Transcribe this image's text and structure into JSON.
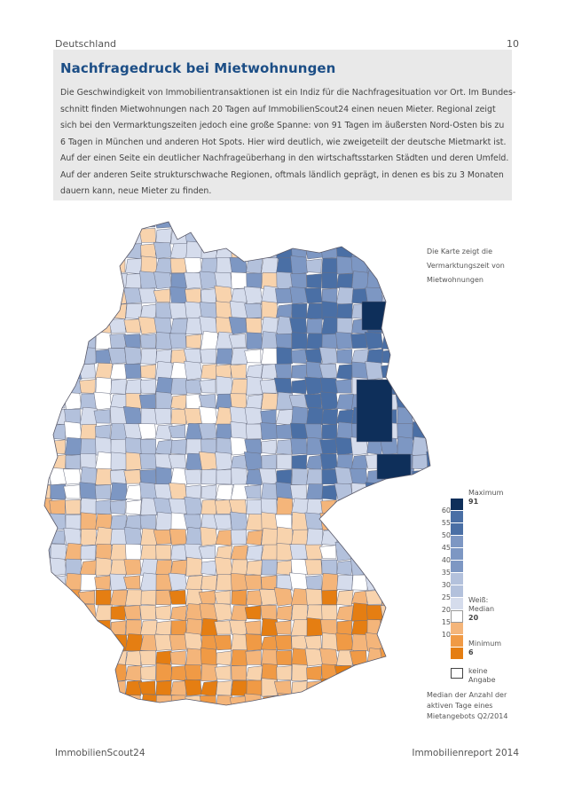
{
  "header": {
    "section": "Deutschland",
    "page_number": "10"
  },
  "intro": {
    "title": "Nachfragedruck bei Mietwohnungen",
    "lines": [
      "Die Geschwindigkeit von Immobilientransaktionen ist ein Indiz für die Nachfragesituation vor Ort. Im Bundes-",
      "schnitt finden Mietwohnungen nach 20 Tagen auf ImmobilienScout24 einen neuen Mieter. Regional zeigt",
      "sich bei den Vermarktungszeiten jedoch eine große Spanne: von 91 Tagen im äußersten Nord-Osten bis zu",
      "6 Tagen in München und anderen Hot Spots. Hier wird deutlich, wie zweigeteilt der deutsche Mietmarkt ist.",
      "Auf der einen Seite ein deutlicher Nachfrageüberhang in den wirtschaftsstarken Städten und deren Umfeld.",
      "Auf der anderen Seite strukturschwache Regionen, oftmals ländlich geprägt, in denen es bis zu 3 Monaten",
      "dauern kann, neue Mieter zu finden."
    ]
  },
  "map": {
    "note_lines": [
      "Die Karte zeigt die",
      "Vermarktungszeit von",
      "Mietwohnungen"
    ],
    "colors": {
      "max": "#0e2f5a",
      "blue_dark": "#4a6fa5",
      "blue_mid": "#7d97c3",
      "blue_light": "#b3c1dc",
      "blue_pale": "#d5dcec",
      "white": "#ffffff",
      "orange_pale": "#f8d3ad",
      "orange_light": "#f4b57a",
      "orange_mid": "#f09a45",
      "orange_dark": "#e57e12"
    }
  },
  "legend": {
    "ticks": [
      "60",
      "55",
      "50",
      "45",
      "40",
      "35",
      "30",
      "25",
      "20",
      "15",
      "10"
    ],
    "max_label": "Maximum",
    "max_value": "91",
    "median_label_1": "Weiß:",
    "median_label_2": "Median",
    "median_value": "20",
    "min_label": "Minimum",
    "min_value": "6",
    "nodata_label_1": "keine",
    "nodata_label_2": "Angabe",
    "source_lines": [
      "Median der Anzahl der",
      "aktiven Tage eines",
      "Mietangebots Q2/2014"
    ]
  },
  "footer": {
    "left": "ImmobilienScout24",
    "right": "Immobilienreport 2014"
  }
}
